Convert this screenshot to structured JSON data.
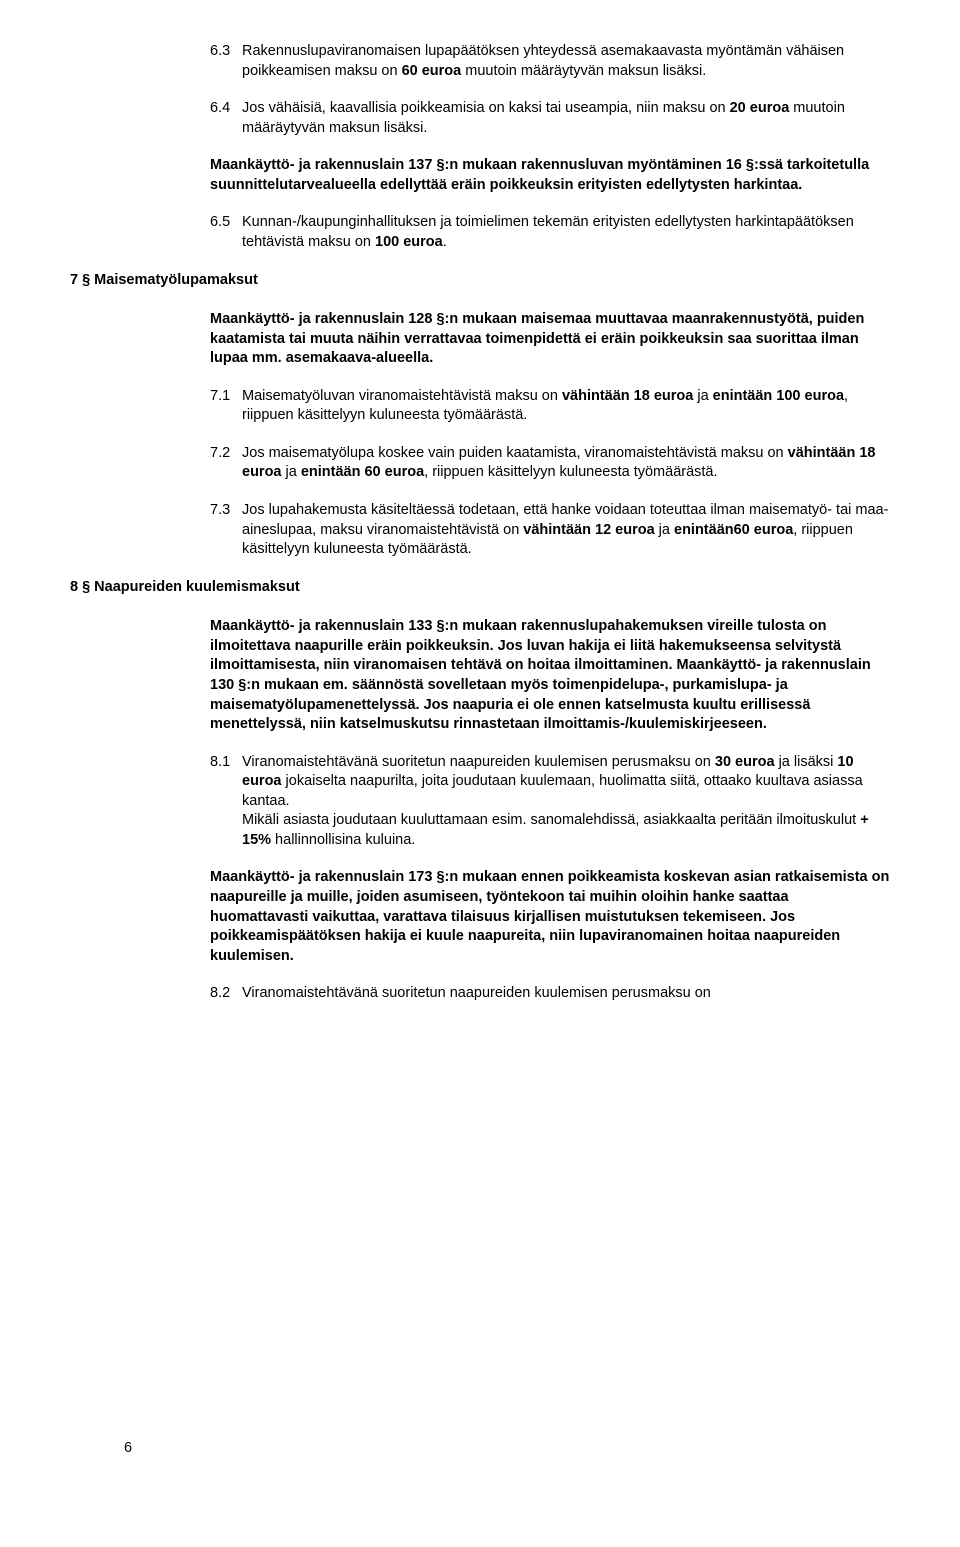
{
  "doc": {
    "page_number": "6",
    "items": [
      {
        "kind": "num",
        "num": "6.3",
        "text_html": "Rakennuslupaviranomaisen lupapäätöksen yhteydessä asemakaavasta myöntämän vähäisen poikkeamisen maksu on <b>60 euroa</b> muutoin määräytyvän maksun lisäksi."
      },
      {
        "kind": "num",
        "num": "6.4",
        "text_html": "Jos vähäisiä, kaavallisia poikkeamisia on kaksi tai useampia, niin maksu on <b>20 euroa</b> muutoin määräytyvän maksun lisäksi."
      },
      {
        "kind": "bold",
        "text_html": "Maankäyttö- ja rakennuslain 137 §:n mukaan rakennusluvan myöntäminen 16 §:ssä tarkoitetulla suunnittelutarvealueella edellyttää eräin poikkeuksin erityisten edellytysten harkintaa."
      },
      {
        "kind": "num",
        "num": "6.5",
        "text_html": "Kunnan-/kaupunginhallituksen ja toimielimen tekemän erityisten edellytysten harkintapäätöksen tehtävistä maksu on <b>100 euroa</b>."
      },
      {
        "kind": "heading",
        "text": "7 § Maisematyölupamaksut"
      },
      {
        "kind": "bold",
        "text_html": "Maankäyttö- ja rakennuslain 128 §:n mukaan maisemaa muuttavaa maanrakennustyötä, puiden kaatamista tai muuta näihin verrattavaa toimenpidettä ei eräin poikkeuksin saa suorittaa ilman lupaa mm. asemakaava-alueella."
      },
      {
        "kind": "num",
        "num": "7.1",
        "text_html": "Maisematyöluvan viranomaistehtävistä maksu on <b>vähintään 18 euroa</b> ja <b>enintään 100 euroa</b>, riippuen käsittelyyn kuluneesta työmäärästä."
      },
      {
        "kind": "num",
        "num": "7.2",
        "text_html": "Jos maisematyölupa koskee vain puiden kaatamista, viranomaistehtävistä maksu on <b>vähintään 18 euroa</b> ja <b>enintään 60 euroa</b>, riippuen käsittelyyn kuluneesta työmäärästä."
      },
      {
        "kind": "num",
        "num": "7.3",
        "text_html": "Jos lupahakemusta käsiteltäessä todetaan, että hanke voidaan toteuttaa ilman maisematyö- tai maa-aineslupaa, maksu viranomaistehtävistä on <b>vähintään 12 euroa</b> ja <b>enintään60 euroa</b>, riippuen käsittelyyn kuluneesta työmäärästä."
      },
      {
        "kind": "heading",
        "text": "8 § Naapureiden kuulemismaksut"
      },
      {
        "kind": "bold",
        "text_html": "Maankäyttö- ja rakennuslain 133 §:n mukaan rakennuslupahakemuksen vireille tulosta on ilmoitettava naapurille eräin poikkeuksin. Jos luvan hakija ei liitä hakemukseensa selvitystä ilmoittamisesta, niin viranomaisen tehtävä on hoitaa ilmoittaminen. Maankäyttö- ja rakennuslain 130 §:n mukaan em. säännöstä sovelletaan myös toimenpidelupa-, purkamislupa- ja maisematyölupamenettelyssä. Jos naapuria ei ole ennen katselmusta kuultu erillisessä menettelyssä, niin katselmuskutsu rinnastetaan ilmoittamis-/kuulemiskirjeeseen."
      },
      {
        "kind": "num",
        "num": "8.1",
        "text_html": "Viranomaistehtävänä suoritetun naapureiden kuulemisen perusmaksu on <b>30 euroa</b> ja lisäksi <b>10 euroa</b> jokaiselta naapurilta, joita joudutaan kuulemaan, huolimatta siitä, ottaako kuultava asiassa kantaa.<br>Mikäli asiasta joudutaan kuuluttamaan esim. sanomalehdissä, asiakkaalta peritään ilmoituskulut <b>+ 15%</b> hallinnollisina kuluina."
      },
      {
        "kind": "bold",
        "text_html": "Maankäyttö- ja rakennuslain 173 §:n mukaan ennen poikkeamista koskevan asian ratkaisemista on naapureille ja muille, joiden asumiseen, työntekoon tai muihin oloihin hanke saattaa huomattavasti vaikuttaa, varattava tilaisuus kirjallisen muistutuksen tekemiseen. Jos poikkeamispäätöksen hakija ei kuule naapureita, niin lupaviranomainen hoitaa naapureiden kuulemisen."
      },
      {
        "kind": "num",
        "num": "8.2",
        "text_html": "Viranomaistehtävänä suoritetun naapureiden kuulemisen perusmaksu on"
      }
    ]
  }
}
